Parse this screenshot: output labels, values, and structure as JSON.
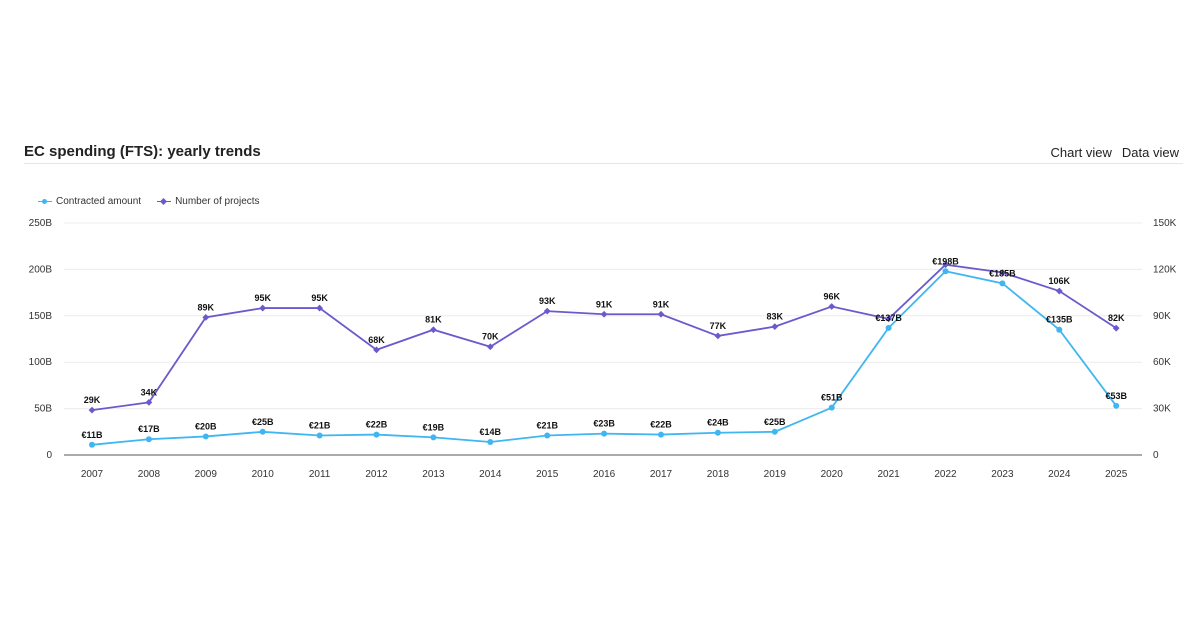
{
  "header": {
    "title": "EC spending (FTS): yearly trends",
    "chart_view_label": "Chart view",
    "data_view_label": "Data view"
  },
  "colors": {
    "contracted": "#3fb6f2",
    "projects": "#6a5acd",
    "grid": "#ececec",
    "axis": "#555555"
  },
  "chart_data": {
    "type": "line",
    "title": "EC spending (FTS): yearly trends",
    "x": [
      "2007",
      "2008",
      "2009",
      "2010",
      "2011",
      "2012",
      "2013",
      "2014",
      "2015",
      "2016",
      "2017",
      "2018",
      "2019",
      "2020",
      "2021",
      "2022",
      "2023",
      "2024",
      "2025"
    ],
    "legend_position": "top-left",
    "grid": true,
    "y_left": {
      "range": [
        0,
        250
      ],
      "ticks": [
        "0",
        "50B",
        "100B",
        "150B",
        "200B",
        "250B"
      ],
      "tick_values": [
        0,
        50,
        100,
        150,
        200,
        250
      ],
      "unit": "B EUR"
    },
    "y_right": {
      "range": [
        0,
        150
      ],
      "ticks": [
        "0",
        "30K",
        "60K",
        "90K",
        "120K",
        "150K"
      ],
      "tick_values": [
        0,
        30,
        60,
        90,
        120,
        150
      ],
      "unit": "K projects"
    },
    "series": [
      {
        "name": "Contracted amount",
        "axis": "left",
        "marker": "circle",
        "values": [
          11,
          17,
          20,
          25,
          21,
          22,
          19,
          14,
          21,
          23,
          22,
          24,
          25,
          51,
          137,
          198,
          185,
          135,
          53
        ],
        "labels": [
          "€11B",
          "€17B",
          "€20B",
          "€25B",
          "€21B",
          "€22B",
          "€19B",
          "€14B",
          "€21B",
          "€23B",
          "€22B",
          "€24B",
          "€25B",
          "€51B",
          "€137B",
          "€198B",
          "€185B",
          "€135B",
          "€53B"
        ]
      },
      {
        "name": "Number of projects",
        "axis": "right",
        "marker": "diamond",
        "values": [
          29,
          34,
          89,
          95,
          95,
          68,
          81,
          70,
          93,
          91,
          91,
          77,
          83,
          96,
          88,
          123,
          118,
          106,
          82
        ],
        "labels": [
          "29K",
          "34K",
          "89K",
          "95K",
          "95K",
          "68K",
          "81K",
          "70K",
          "93K",
          "91K",
          "91K",
          "77K",
          "83K",
          "96K",
          "",
          "",
          "",
          "106K",
          "82K"
        ]
      }
    ]
  }
}
